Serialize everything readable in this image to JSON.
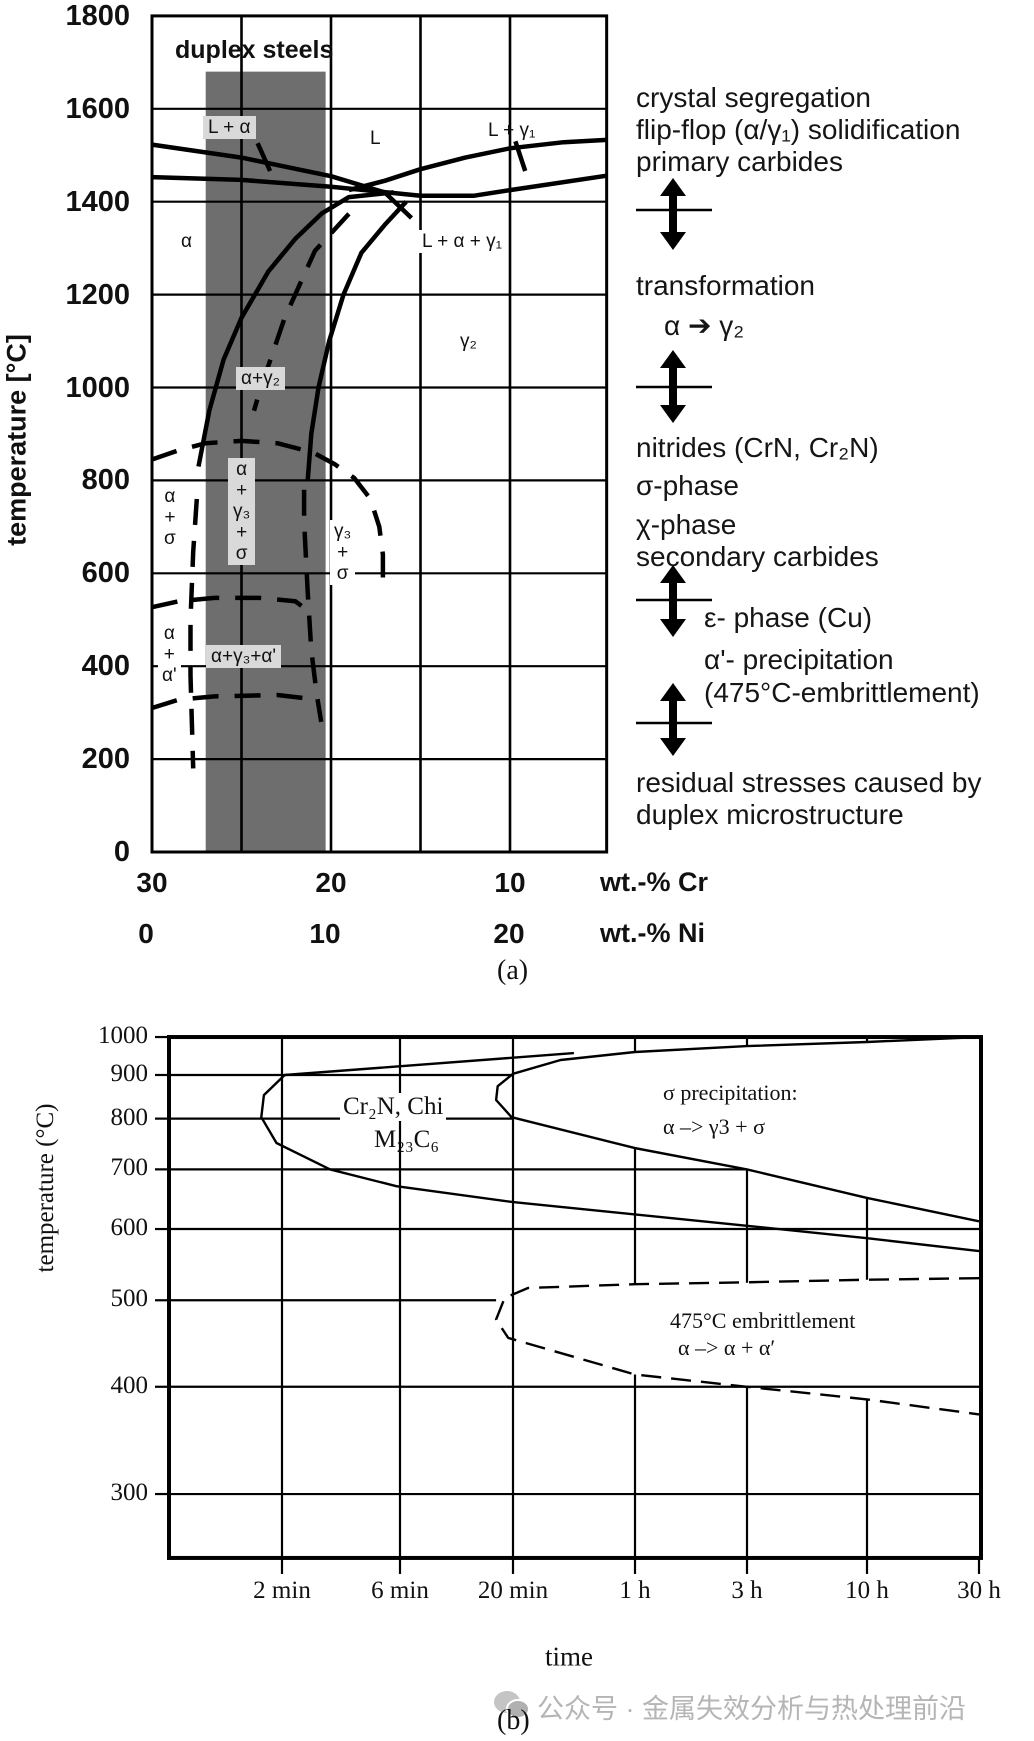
{
  "chart_data": [
    {
      "type": "line",
      "panel_label": "(a)",
      "title": "",
      "ylabel": "temperature [°C]",
      "ylim": [
        0,
        1800
      ],
      "yticks": [
        0,
        200,
        400,
        600,
        800,
        1000,
        1200,
        1400,
        1600,
        1800
      ],
      "xlabel": "wt.-% Cr",
      "xlim": [
        30,
        4.6
      ],
      "xticks": [
        30,
        20,
        10
      ],
      "x2label": "wt.-% Ni",
      "x2ticks": [
        0,
        10,
        20
      ],
      "grid": true,
      "shaded_region": {
        "label": "duplex steels",
        "cr_range": [
          27,
          20.3
        ],
        "t_max": 1680,
        "color": "#6e6e6e"
      },
      "region_labels": {
        "l_alpha": "L + α",
        "l": "L",
        "l_gamma1": "L + γ₁",
        "alpha": "α",
        "l_alpha_gamma1": "L + α + γ₁",
        "gamma2": "γ₂",
        "alpha_gamma2": "α+γ₂",
        "alpha_sigma": "α\n+\nσ",
        "alpha_gamma3_sigma": "α\n+\nγ₃\n+\nσ",
        "gamma3_sigma": "γ₃\n+\nσ",
        "alpha_alphaprime": "α\n+\nα'",
        "alpha_gamma3_alphaprime": "α+γ₃+α'"
      },
      "series": [
        {
          "style": "solid",
          "points": [
            [
              30,
              1523
            ],
            [
              25,
              1495
            ],
            [
              20,
              1455
            ],
            [
              17,
              1420
            ],
            [
              15.5,
              1365
            ]
          ]
        },
        {
          "style": "solid",
          "points": [
            [
              30,
              1453
            ],
            [
              25,
              1447
            ],
            [
              20,
              1432
            ],
            [
              15,
              1413
            ],
            [
              12,
              1413
            ],
            [
              10,
              1425
            ],
            [
              4.6,
              1456
            ]
          ]
        },
        {
          "style": "solid",
          "points": [
            [
              19,
              1425
            ],
            [
              17,
              1445
            ],
            [
              15,
              1470
            ],
            [
              12.5,
              1495
            ],
            [
              10,
              1515
            ],
            [
              7,
              1528
            ],
            [
              4.6,
              1533
            ]
          ]
        },
        {
          "style": "solid",
          "points": [
            [
              24.1,
              1526
            ],
            [
              23.4,
              1466
            ]
          ]
        },
        {
          "style": "solid",
          "points": [
            [
              9.7,
              1530
            ],
            [
              9.15,
              1466
            ]
          ]
        },
        {
          "style": "solid",
          "points": [
            [
              27.4,
              830
            ],
            [
              26.8,
              950
            ],
            [
              26,
              1060
            ],
            [
              25,
              1150
            ],
            [
              23.5,
              1250
            ],
            [
              22,
              1320
            ],
            [
              20.5,
              1375
            ],
            [
              19,
              1410
            ],
            [
              16.5,
              1420
            ]
          ]
        },
        {
          "style": "solid",
          "points": [
            [
              15.8,
              1400
            ],
            [
              17,
              1350
            ],
            [
              18.3,
              1290
            ],
            [
              19.3,
              1200
            ],
            [
              20.1,
              1100
            ],
            [
              20.7,
              1000
            ],
            [
              21.1,
              900
            ],
            [
              21.3,
              800
            ]
          ]
        },
        {
          "style": "dashed",
          "points": [
            [
              19,
              1374
            ],
            [
              20.9,
              1294
            ],
            [
              22.6,
              1149
            ],
            [
              24,
              990
            ],
            [
              24.3,
              950
            ]
          ]
        },
        {
          "style": "dashed",
          "points": [
            [
              30,
              845
            ],
            [
              28.5,
              865
            ],
            [
              27,
              880
            ],
            [
              25,
              885
            ],
            [
              23,
              880
            ],
            [
              21,
              860
            ],
            [
              19.8,
              835
            ],
            [
              18.7,
              805
            ],
            [
              17.8,
              760
            ],
            [
              17.3,
              700
            ],
            [
              17.1,
              640
            ],
            [
              17.1,
              570
            ]
          ]
        },
        {
          "style": "dashed",
          "points": [
            [
              27.5,
              760
            ],
            [
              27.7,
              646
            ],
            [
              27.85,
              500
            ],
            [
              27.85,
              380
            ],
            [
              27.7,
              180
            ]
          ]
        },
        {
          "style": "dashed",
          "points": [
            [
              30,
              527
            ],
            [
              28.5,
              540
            ],
            [
              26.5,
              547
            ],
            [
              24,
              547
            ],
            [
              22,
              540
            ],
            [
              21.3,
              520
            ]
          ]
        },
        {
          "style": "dashed",
          "points": [
            [
              21.5,
              780
            ],
            [
              21.5,
              712
            ],
            [
              21.3,
              560
            ],
            [
              21.1,
              434
            ],
            [
              20.8,
              340
            ],
            [
              20.55,
              280
            ]
          ]
        },
        {
          "style": "dashed",
          "points": [
            [
              30,
              310
            ],
            [
              28.5,
              328
            ],
            [
              26.5,
              335
            ],
            [
              23,
              338
            ],
            [
              21.2,
              330
            ]
          ]
        }
      ],
      "annotations": [
        "crystal segregation",
        "flip-flop (α/γ₁) solidification",
        "primary carbides",
        "transformation",
        "α ➔ γ₂",
        "nitrides (CrN, Cr₂N)",
        "σ-phase",
        "χ-phase",
        "secondary carbides",
        "ε- phase (Cu)",
        "α'- precipitation",
        "(475°C-embrittlement)",
        "residual stresses caused by",
        "duplex microstructure"
      ]
    },
    {
      "type": "line",
      "panel_label": "(b)",
      "title": "",
      "ylabel": "temperature (°C)",
      "xlabel": "time",
      "ylim": [
        250,
        1000
      ],
      "yscale": "reciprocal-like",
      "yticks": [
        1000,
        900,
        800,
        700,
        600,
        500,
        400,
        300
      ],
      "xscale": "log",
      "xticks": [
        {
          "label": "2 min",
          "minutes": 2
        },
        {
          "label": "6 min",
          "minutes": 6
        },
        {
          "label": "20 min",
          "minutes": 20
        },
        {
          "label": "1 h",
          "minutes": 60
        },
        {
          "label": "3 h",
          "minutes": 180
        },
        {
          "label": "10 h",
          "minutes": 600
        },
        {
          "label": "30 h",
          "minutes": 1800
        }
      ],
      "grid": true,
      "region_labels": {
        "carbides_line1": "Cr₂N, Chi",
        "carbides_line2": "M₂₃C₆",
        "sigma_line1": "σ precipitation:",
        "sigma_line2": "α –> γ3 + σ",
        "embrittlement_line1": "475°C embrittlement",
        "embrittlement_line2": "α –> α + α′"
      },
      "series": [
        {
          "style": "solid",
          "points": [
            [
              34.6,
              956
            ],
            [
              2.05,
              900
            ],
            [
              1.69,
              852
            ],
            [
              1.65,
              803
            ],
            [
              1.9,
              750
            ],
            [
              3.13,
              700
            ],
            [
              5.8,
              670
            ],
            [
              20,
              643
            ],
            [
              60,
              623
            ],
            [
              180,
              605
            ],
            [
              600,
              586
            ],
            [
              1800,
              567
            ]
          ]
        },
        {
          "style": "solid",
          "points": [
            [
              1800,
              1000
            ],
            [
              600,
              986
            ],
            [
              180,
              975
            ],
            [
              60,
              959
            ],
            [
              30.7,
              938
            ],
            [
              20,
              903
            ],
            [
              17,
              873
            ],
            [
              16.7,
              841
            ],
            [
              19.7,
              803
            ],
            [
              60,
              740
            ],
            [
              180,
              700
            ],
            [
              600,
              650
            ],
            [
              1800,
              612
            ]
          ]
        },
        {
          "style": "dashed",
          "points": [
            [
              1800,
              529
            ],
            [
              600,
              527
            ],
            [
              180,
              523.5
            ],
            [
              60,
              521
            ],
            [
              22.9,
              516
            ],
            [
              18.3,
              503
            ],
            [
              16.7,
              476
            ],
            [
              19,
              454
            ],
            [
              60,
              413
            ],
            [
              180,
              400
            ],
            [
              600,
              387
            ],
            [
              1800,
              372
            ]
          ]
        }
      ]
    }
  ],
  "watermark": "公众号 · 金属失效分析与热处理前沿",
  "watermark_icon": "wechat-icon"
}
